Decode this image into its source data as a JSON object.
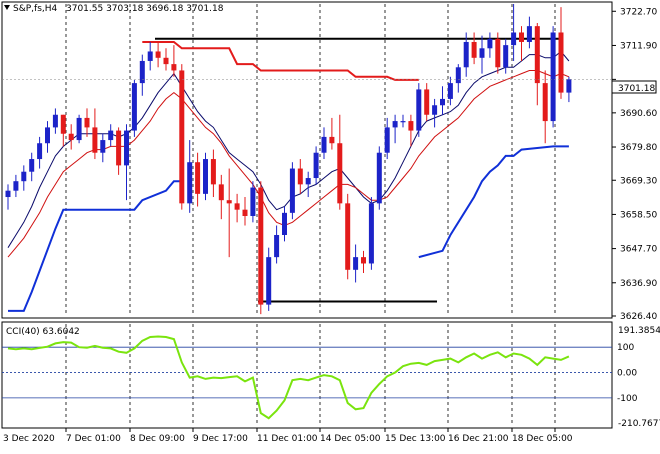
{
  "header": {
    "symbol": "S&P,fs,H4",
    "ohlc": "3701.55 3703.18 3696.18 3701.18"
  },
  "subwindow": {
    "label": "CCI(40) 63.6042",
    "scale_top": "191.3854",
    "scale_bottom": "-210.7677"
  },
  "current_price_label": "3701.18",
  "colors": {
    "up_candle": "#1c23c8",
    "down_candle": "#e31b1b",
    "ma_fast": "#0b0b6b",
    "ma_slow": "#d01010",
    "stop_red": "#e31b1b",
    "stop_blue": "#1030d8",
    "cci_line": "#7ae40e",
    "levels": "#2040a0"
  },
  "chart_data": [
    {
      "type": "candlestick",
      "ylim": [
        3626.4,
        3725.0
      ],
      "y_ticks": [
        3722.7,
        3711.9,
        3701.18,
        3690.6,
        3679.8,
        3669.3,
        3658.5,
        3647.7,
        3636.9,
        3626.4
      ],
      "x_labels": [
        "3 Dec 2020",
        "7 Dec 01:00",
        "8 Dec 09:00",
        "9 Dec 17:00",
        "11 Dec 01:00",
        "14 Dec 05:00",
        "15 Dec 13:00",
        "16 Dec 21:00",
        "18 Dec 05:00"
      ],
      "candles": [
        [
          3664,
          3668,
          3660,
          3666
        ],
        [
          3666,
          3671,
          3664,
          3669
        ],
        [
          3669,
          3674,
          3666,
          3672
        ],
        [
          3672,
          3678,
          3669,
          3676
        ],
        [
          3676,
          3683,
          3673,
          3681
        ],
        [
          3681,
          3688,
          3678,
          3686
        ],
        [
          3686,
          3692,
          3684,
          3690
        ],
        [
          3690,
          3690,
          3680,
          3684
        ],
        [
          3684,
          3687,
          3679,
          3682
        ],
        [
          3682,
          3690,
          3681,
          3689
        ],
        [
          3689,
          3692,
          3683,
          3686
        ],
        [
          3686,
          3692,
          3676,
          3678
        ],
        [
          3678,
          3684,
          3675,
          3682
        ],
        [
          3682,
          3687,
          3680,
          3685
        ],
        [
          3685,
          3686,
          3671,
          3674
        ],
        [
          3674,
          3687,
          3663,
          3685
        ],
        [
          3685,
          3701,
          3683,
          3700
        ],
        [
          3700,
          3709,
          3696,
          3707
        ],
        [
          3707,
          3713,
          3704,
          3710
        ],
        [
          3710,
          3713,
          3705,
          3708
        ],
        [
          3708,
          3711,
          3704,
          3706
        ],
        [
          3706,
          3712,
          3702,
          3704
        ],
        [
          3704,
          3706,
          3660,
          3662
        ],
        [
          3662,
          3682,
          3659,
          3675
        ],
        [
          3675,
          3678,
          3661,
          3665
        ],
        [
          3665,
          3678,
          3663,
          3676
        ],
        [
          3676,
          3679,
          3664,
          3668
        ],
        [
          3668,
          3671,
          3657,
          3663
        ],
        [
          3663,
          3673,
          3645,
          3662
        ],
        [
          3662,
          3665,
          3656,
          3660
        ],
        [
          3660,
          3664,
          3655,
          3658
        ],
        [
          3658,
          3669,
          3656,
          3667
        ],
        [
          3667,
          3669,
          3627,
          3630
        ],
        [
          3630,
          3648,
          3628,
          3645
        ],
        [
          3645,
          3655,
          3643,
          3652
        ],
        [
          3652,
          3661,
          3650,
          3659
        ],
        [
          3659,
          3675,
          3657,
          3673
        ],
        [
          3673,
          3676,
          3665,
          3668
        ],
        [
          3668,
          3672,
          3664,
          3670
        ],
        [
          3670,
          3680,
          3668,
          3678
        ],
        [
          3678,
          3686,
          3676,
          3683
        ],
        [
          3683,
          3689,
          3679,
          3681
        ],
        [
          3681,
          3690,
          3660,
          3662
        ],
        [
          3662,
          3665,
          3638,
          3641
        ],
        [
          3641,
          3649,
          3637,
          3645
        ],
        [
          3645,
          3647,
          3640,
          3643
        ],
        [
          3643,
          3664,
          3641,
          3662
        ],
        [
          3662,
          3680,
          3660,
          3678
        ],
        [
          3678,
          3689,
          3676,
          3686
        ],
        [
          3686,
          3690,
          3681,
          3688
        ],
        [
          3688,
          3690,
          3686,
          3688
        ],
        [
          3688,
          3690,
          3680,
          3685
        ],
        [
          3685,
          3700,
          3683,
          3698
        ],
        [
          3698,
          3700,
          3688,
          3690
        ],
        [
          3690,
          3695,
          3686,
          3693
        ],
        [
          3693,
          3699,
          3690,
          3695
        ],
        [
          3695,
          3702,
          3693,
          3700
        ],
        [
          3700,
          3706,
          3697,
          3705
        ],
        [
          3705,
          3716,
          3702,
          3713
        ],
        [
          3713,
          3716,
          3706,
          3708
        ],
        [
          3708,
          3715,
          3703,
          3711
        ],
        [
          3711,
          3716,
          3708,
          3714
        ],
        [
          3714,
          3716,
          3703,
          3705
        ],
        [
          3705,
          3714,
          3703,
          3712
        ],
        [
          3712,
          3725,
          3707,
          3716
        ],
        [
          3716,
          3718,
          3707,
          3713
        ],
        [
          3713,
          3721,
          3711,
          3718
        ],
        [
          3718,
          3719,
          3693,
          3700
        ],
        [
          3700,
          3704,
          3681,
          3688
        ],
        [
          3688,
          3718,
          3686,
          3716
        ],
        [
          3716,
          3724,
          3695,
          3697
        ],
        [
          3697,
          3702,
          3694,
          3701.18
        ]
      ],
      "ma_fast": [
        3648,
        3652,
        3656,
        3661,
        3667,
        3672,
        3677,
        3680,
        3682,
        3684,
        3684,
        3684,
        3684,
        3684,
        3683,
        3684,
        3686,
        3689,
        3693,
        3697,
        3700,
        3703,
        3699,
        3695,
        3691,
        3688,
        3686,
        3682,
        3678,
        3676,
        3674,
        3672,
        3668,
        3663,
        3660,
        3661,
        3664,
        3665,
        3667,
        3668,
        3670,
        3672,
        3673,
        3670,
        3667,
        3664,
        3662,
        3663,
        3666,
        3670,
        3675,
        3680,
        3685,
        3688,
        3689,
        3690,
        3691,
        3693,
        3697,
        3700,
        3702,
        3703,
        3704,
        3705,
        3705,
        3707,
        3709,
        3709,
        3708,
        3708,
        3710,
        3707
      ],
      "ma_slow": [
        3645,
        3648,
        3651,
        3655,
        3659,
        3664,
        3668,
        3672,
        3674,
        3676,
        3678,
        3679,
        3679,
        3680,
        3680,
        3680,
        3682,
        3685,
        3688,
        3692,
        3695,
        3697,
        3695,
        3692,
        3689,
        3686,
        3684,
        3681,
        3677,
        3674,
        3671,
        3668,
        3664,
        3659,
        3656,
        3655,
        3656,
        3658,
        3660,
        3662,
        3664,
        3666,
        3668,
        3668,
        3667,
        3665,
        3663,
        3663,
        3664,
        3667,
        3670,
        3673,
        3677,
        3680,
        3683,
        3685,
        3687,
        3689,
        3692,
        3695,
        3697,
        3699,
        3700,
        3701,
        3702,
        3703,
        3704,
        3704,
        3703,
        3702,
        3703,
        3702
      ],
      "support_level": 3631,
      "resistance_level": 3714,
      "stop_red": [
        [
          17,
          3713
        ],
        [
          21,
          3713
        ],
        [
          22,
          3711
        ],
        [
          28,
          3711
        ],
        [
          29,
          3706
        ],
        [
          31,
          3706
        ],
        [
          32,
          3704
        ],
        [
          43,
          3704
        ],
        [
          44,
          3702
        ],
        [
          48,
          3702
        ],
        [
          49,
          3701
        ],
        [
          52,
          3701
        ]
      ],
      "stop_blue": [
        [
          0,
          3628
        ],
        [
          2,
          3628
        ],
        [
          3,
          3634
        ],
        [
          6,
          3654
        ],
        [
          7,
          3660
        ],
        [
          16,
          3660
        ],
        [
          17,
          3663
        ],
        [
          20,
          3666
        ],
        [
          21,
          3669
        ],
        [
          22,
          3669
        ]
      ],
      "stop_blue_2": [
        [
          52,
          3645
        ],
        [
          55,
          3647
        ],
        [
          56,
          3652
        ],
        [
          58,
          3660
        ],
        [
          59,
          3664
        ],
        [
          60,
          3669
        ],
        [
          61,
          3672
        ],
        [
          62,
          3674
        ],
        [
          63,
          3677
        ],
        [
          64,
          3677
        ],
        [
          65,
          3679
        ],
        [
          69,
          3680
        ],
        [
          71,
          3680
        ]
      ]
    },
    {
      "type": "line",
      "title": "CCI(40) 63.6042",
      "ylim": [
        -210.7677,
        191.3854
      ],
      "levels": [
        100,
        0,
        -100
      ],
      "level_labels": [
        "100",
        "0.00",
        "-100"
      ],
      "values": [
        95,
        92,
        95,
        92,
        97,
        102,
        115,
        120,
        118,
        100,
        98,
        105,
        98,
        95,
        82,
        78,
        95,
        125,
        140,
        142,
        140,
        132,
        40,
        -20,
        -15,
        -25,
        -20,
        -22,
        -18,
        -15,
        -35,
        -20,
        -160,
        -180,
        -150,
        -110,
        -30,
        -25,
        -30,
        -20,
        -10,
        -15,
        -30,
        -120,
        -145,
        -140,
        -80,
        -45,
        -15,
        0,
        25,
        35,
        38,
        30,
        45,
        50,
        55,
        40,
        60,
        75,
        55,
        70,
        80,
        60,
        75,
        70,
        55,
        30,
        60,
        55,
        50,
        63.6
      ]
    }
  ]
}
